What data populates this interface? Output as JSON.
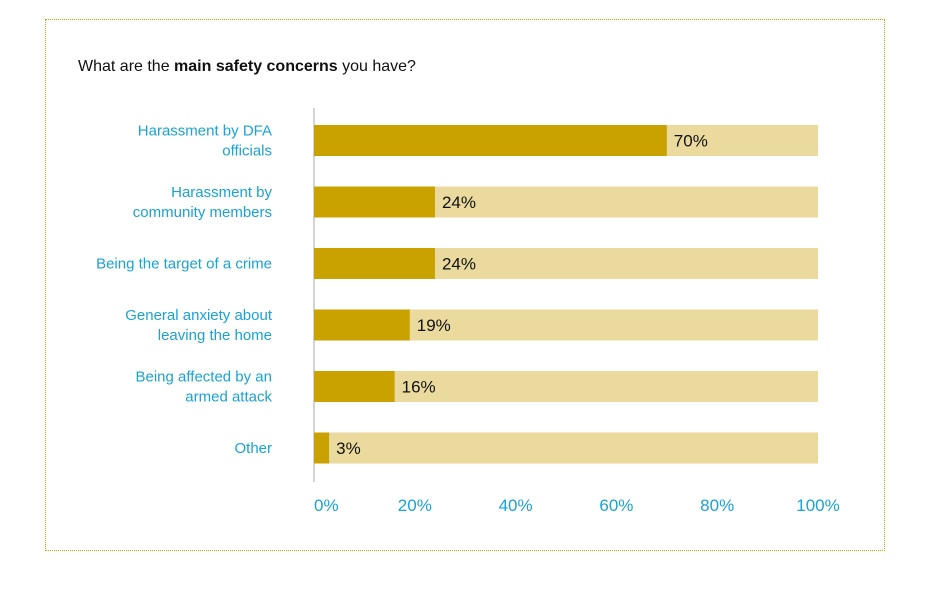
{
  "chart_data": {
    "type": "bar",
    "orientation": "horizontal",
    "stacked_to_100": true,
    "title": {
      "prefix": "What are the ",
      "bold": "main safety concerns",
      "suffix": " you have?"
    },
    "categories": [
      [
        "Harassment by DFA",
        "officials"
      ],
      [
        "Harassment by",
        "community members"
      ],
      [
        "Being the target of a crime"
      ],
      [
        "General anxiety about",
        "leaving the home"
      ],
      [
        "Being affected by an",
        "armed attack"
      ],
      [
        "Other"
      ]
    ],
    "values": [
      70,
      24,
      24,
      19,
      16,
      3
    ],
    "value_labels": [
      "70%",
      "24%",
      "24%",
      "19%",
      "16%",
      "3%"
    ],
    "xlim": [
      0,
      100
    ],
    "x_ticks": [
      0,
      20,
      40,
      60,
      80,
      100
    ],
    "x_tick_labels": [
      "0%",
      "20%",
      "40%",
      "60%",
      "80%",
      "100%"
    ],
    "grid": false,
    "legend": "none",
    "colors": {
      "value_bar": "#c9a200",
      "remainder_bar": "#ebda9e",
      "category_text": "#1aa3d9",
      "tick_text": "#1aa3d9",
      "value_text": "#111111",
      "frame": "#c9a400",
      "axis": "#aaaaaa"
    }
  }
}
